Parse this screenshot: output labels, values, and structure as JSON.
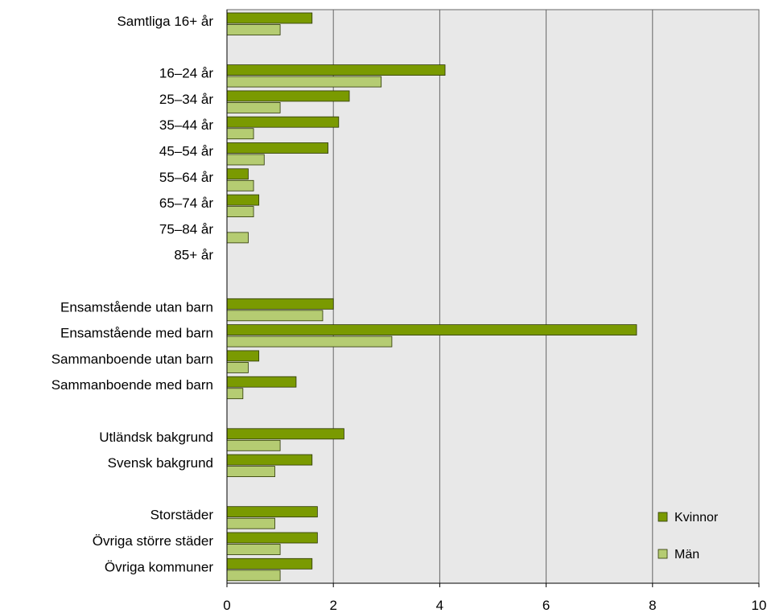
{
  "chart_data": {
    "type": "bar",
    "orientation": "horizontal",
    "categories": [
      "Samtliga 16+ år",
      "16–24 år",
      "25–34 år",
      "35–44 år",
      "45–54 år",
      "55–64 år",
      "65–74 år",
      "75–84 år",
      "85+ år",
      "Ensamstående utan barn",
      "Ensamstående med barn",
      "Sammanboende utan barn",
      "Sammanboende med barn",
      "Utländsk bakgrund",
      "Svensk bakgrund",
      "Storstäder",
      "Övriga större städer",
      "Övriga kommuner"
    ],
    "series": [
      {
        "name": "Kvinnor",
        "color": "#7a9a01",
        "values": [
          1.6,
          4.1,
          2.3,
          2.1,
          1.9,
          0.4,
          0.6,
          0,
          0,
          2.0,
          7.7,
          0.6,
          1.3,
          2.2,
          1.6,
          1.7,
          1.7,
          1.6
        ]
      },
      {
        "name": "Män",
        "color": "#b5cc72",
        "values": [
          1.0,
          2.9,
          1.0,
          0.5,
          0.7,
          0.5,
          0.5,
          0.4,
          0,
          1.8,
          3.1,
          0.4,
          0.3,
          1.0,
          0.9,
          0.9,
          1.0,
          1.0
        ]
      }
    ],
    "xlim": [
      0,
      10
    ],
    "xticks": [
      0,
      2,
      4,
      6,
      8,
      10
    ],
    "grid": true,
    "legend_position": "bottom-right",
    "plot_background": "#e8e8e8",
    "title": "",
    "xlabel": "",
    "ylabel": ""
  }
}
